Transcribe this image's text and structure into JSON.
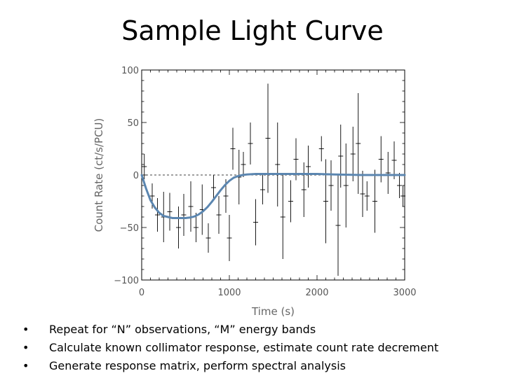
{
  "slide": {
    "title": "Sample Light Curve",
    "bullets": [
      "Repeat for “N” observations, “M” energy bands",
      "Calculate known collimator response, estimate count rate decrement",
      "Generate response matrix, perform spectral analysis"
    ],
    "bullet_glyph": "•"
  },
  "chart_data": {
    "type": "scatter",
    "title": "",
    "xlabel": "Time (s)",
    "ylabel": "Count Rate (ct/s/PCU)",
    "xlim": [
      0,
      3000
    ],
    "ylim": [
      -100,
      100
    ],
    "xticks": [
      0,
      1000,
      2000,
      3000
    ],
    "xtick_labels": [
      "0",
      "1000",
      "2000",
      "3000"
    ],
    "yticks": [
      -100,
      -50,
      0,
      50,
      100
    ],
    "ytick_labels": [
      "−100",
      "−50",
      "0",
      "50",
      "100"
    ],
    "grid": false,
    "zero_reference_line": "dashed",
    "colors": {
      "model": "#5b86b0",
      "data": "#000000"
    },
    "series": [
      {
        "kind": "data_with_errorbars",
        "points": [
          {
            "x": 30,
            "y": 8,
            "err": 12
          },
          {
            "x": 120,
            "y": -20,
            "err": 12
          },
          {
            "x": 180,
            "y": -38,
            "err": 16
          },
          {
            "x": 250,
            "y": -40,
            "err": 24
          },
          {
            "x": 320,
            "y": -35,
            "err": 18
          },
          {
            "x": 420,
            "y": -50,
            "err": 20
          },
          {
            "x": 480,
            "y": -38,
            "err": 20
          },
          {
            "x": 560,
            "y": -30,
            "err": 24
          },
          {
            "x": 620,
            "y": -50,
            "err": 14
          },
          {
            "x": 690,
            "y": -33,
            "err": 24
          },
          {
            "x": 760,
            "y": -60,
            "err": 14
          },
          {
            "x": 820,
            "y": -12,
            "err": 12
          },
          {
            "x": 880,
            "y": -38,
            "err": 18
          },
          {
            "x": 960,
            "y": -20,
            "err": 16
          },
          {
            "x": 1000,
            "y": -60,
            "err": 22
          },
          {
            "x": 1040,
            "y": 25,
            "err": 20
          },
          {
            "x": 1110,
            "y": -2,
            "err": 26
          },
          {
            "x": 1160,
            "y": 10,
            "err": 12
          },
          {
            "x": 1240,
            "y": 30,
            "err": 20
          },
          {
            "x": 1300,
            "y": -45,
            "err": 22
          },
          {
            "x": 1380,
            "y": -14,
            "err": 14
          },
          {
            "x": 1440,
            "y": 35,
            "err": 52
          },
          {
            "x": 1550,
            "y": 10,
            "err": 40
          },
          {
            "x": 1610,
            "y": -40,
            "err": 40
          },
          {
            "x": 1700,
            "y": -25,
            "err": 20
          },
          {
            "x": 1760,
            "y": 15,
            "err": 20
          },
          {
            "x": 1850,
            "y": -14,
            "err": 26
          },
          {
            "x": 1900,
            "y": 8,
            "err": 20
          },
          {
            "x": 2050,
            "y": 25,
            "err": 12
          },
          {
            "x": 2100,
            "y": -25,
            "err": 40
          },
          {
            "x": 2160,
            "y": -10,
            "err": 24
          },
          {
            "x": 2240,
            "y": -48,
            "err": 48
          },
          {
            "x": 2270,
            "y": 18,
            "err": 30
          },
          {
            "x": 2330,
            "y": -10,
            "err": 40
          },
          {
            "x": 2410,
            "y": 20,
            "err": 26
          },
          {
            "x": 2470,
            "y": 30,
            "err": 48
          },
          {
            "x": 2520,
            "y": -18,
            "err": 22
          },
          {
            "x": 2570,
            "y": -20,
            "err": 14
          },
          {
            "x": 2660,
            "y": -25,
            "err": 30
          },
          {
            "x": 2730,
            "y": 15,
            "err": 22
          },
          {
            "x": 2810,
            "y": 2,
            "err": 20
          },
          {
            "x": 2880,
            "y": 14,
            "err": 18
          },
          {
            "x": 2940,
            "y": -10,
            "err": 12
          },
          {
            "x": 2980,
            "y": -20,
            "err": 10
          }
        ]
      },
      {
        "kind": "model_curve",
        "x": [
          0,
          50,
          100,
          150,
          200,
          250,
          300,
          350,
          400,
          450,
          500,
          550,
          600,
          650,
          700,
          750,
          800,
          850,
          900,
          950,
          1000,
          1050,
          1100,
          1150,
          1200,
          1300,
          1400,
          1500,
          1600,
          1800,
          2000,
          2200,
          2500,
          2800,
          3000
        ],
        "y": [
          0,
          -13,
          -24,
          -31,
          -36,
          -39,
          -40,
          -41,
          -41,
          -41,
          -41,
          -40.5,
          -39.5,
          -37.5,
          -34.5,
          -30.5,
          -25.5,
          -20,
          -14.5,
          -9.5,
          -5.5,
          -2.5,
          -1,
          0,
          0.5,
          1,
          1,
          1,
          1,
          1,
          1,
          0.5,
          0,
          0,
          0
        ]
      }
    ]
  }
}
